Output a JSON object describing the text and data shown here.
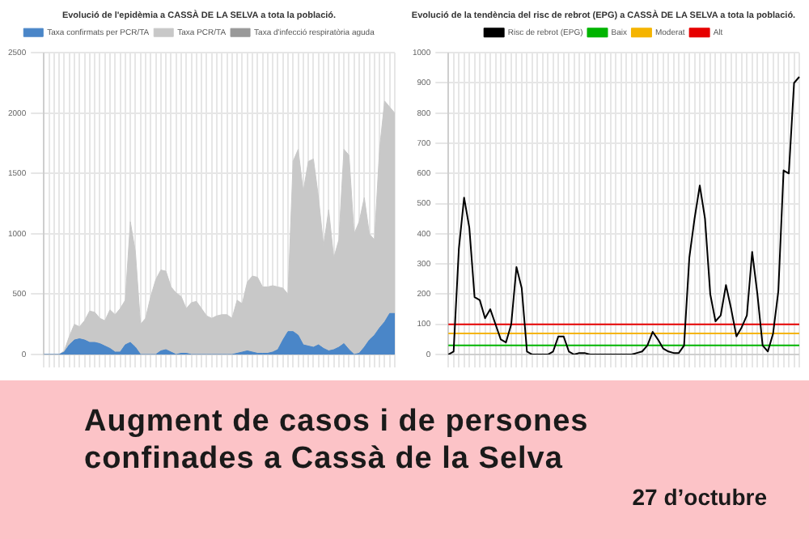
{
  "chart_data": [
    {
      "type": "area",
      "title": "Evolució de l'epidèmia a CASSÀ DE LA SELVA a tota la població.",
      "categories": [
        null,
        null,
        null,
        null,
        null,
        null,
        null,
        null,
        null,
        null,
        null,
        null,
        null,
        null,
        null,
        null,
        null,
        null,
        null,
        null,
        null,
        null,
        null,
        null,
        null,
        null,
        null,
        null,
        null,
        null,
        null,
        null,
        null,
        null,
        null,
        null,
        null,
        null,
        null,
        null,
        null,
        null,
        null,
        null,
        null,
        null,
        null,
        null,
        null,
        null,
        null,
        null,
        null,
        null,
        null,
        null,
        null,
        null,
        null,
        null,
        null,
        null,
        null,
        null,
        null,
        null,
        null,
        null,
        null,
        null
      ],
      "series": [
        {
          "name": "Taxa confirmats per PCR/TA",
          "color": "#4a86c8",
          "values": [
            0,
            0,
            0,
            0,
            20,
            80,
            120,
            130,
            120,
            100,
            100,
            90,
            70,
            50,
            20,
            20,
            80,
            100,
            60,
            0,
            0,
            0,
            0,
            30,
            40,
            20,
            0,
            10,
            10,
            0,
            0,
            0,
            0,
            0,
            0,
            0,
            0,
            0,
            10,
            20,
            30,
            20,
            10,
            10,
            10,
            20,
            40,
            120,
            190,
            190,
            160,
            80,
            70,
            60,
            80,
            50,
            30,
            40,
            60,
            90,
            40,
            0,
            10,
            60,
            120,
            160,
            220,
            270,
            340,
            340
          ]
        },
        {
          "name": "Taxa PCR/TA",
          "color": "#c8c8c8",
          "values": [
            0,
            0,
            0,
            0,
            30,
            150,
            250,
            230,
            280,
            360,
            350,
            300,
            280,
            370,
            330,
            380,
            450,
            1100,
            850,
            250,
            300,
            480,
            620,
            700,
            690,
            560,
            510,
            480,
            380,
            430,
            440,
            380,
            320,
            300,
            320,
            330,
            330,
            300,
            450,
            420,
            600,
            650,
            640,
            560,
            560,
            570,
            560,
            550,
            500,
            1600,
            1700,
            1350,
            1600,
            1620,
            1300,
            900,
            1200,
            800,
            950,
            1700,
            1650,
            1000,
            1100,
            1300,
            1000,
            950,
            1700,
            2100,
            2050,
            2000
          ]
        },
        {
          "name": "Taxa d'infecció respiratòria aguda",
          "color": "#999999",
          "values": [
            null,
            null,
            null,
            null,
            null,
            null,
            null,
            null,
            null,
            null,
            null,
            null,
            null,
            null,
            null,
            null,
            null,
            null,
            null,
            null,
            null,
            null,
            null,
            null,
            null,
            null,
            null,
            null,
            null,
            null,
            null,
            null,
            null,
            null,
            null,
            null,
            null,
            null,
            null,
            null,
            null,
            null,
            null,
            null,
            null,
            null,
            null,
            null,
            null,
            null,
            null,
            null,
            null,
            null,
            null,
            null,
            null,
            null,
            null,
            null,
            null,
            null,
            null,
            null,
            null,
            null,
            null,
            null,
            null,
            null
          ]
        }
      ],
      "ylim": [
        0,
        2500
      ],
      "yticks": [
        0,
        500,
        1000,
        1500,
        2000,
        2500
      ],
      "grid": true,
      "legend": "top",
      "tick_labels": "y"
    },
    {
      "type": "line",
      "title": "Evolució de la tendència del risc de rebrot (EPG) a CASSÀ DE LA SELVA a tota la població.",
      "categories": [
        null,
        null,
        null,
        null,
        null,
        null,
        null,
        null,
        null,
        null,
        null,
        null,
        null,
        null,
        null,
        null,
        null,
        null,
        null,
        null,
        null,
        null,
        null,
        null,
        null,
        null,
        null,
        null,
        null,
        null,
        null,
        null,
        null,
        null,
        null,
        null,
        null,
        null,
        null,
        null,
        null,
        null,
        null,
        null,
        null,
        null,
        null,
        null,
        null,
        null,
        null,
        null,
        null,
        null,
        null,
        null,
        null,
        null,
        null,
        null,
        null,
        null,
        null,
        null,
        null,
        null,
        null,
        null
      ],
      "series": [
        {
          "name": "Risc de rebrot (EPG)",
          "color": "#000000",
          "values": [
            0,
            10,
            350,
            520,
            420,
            190,
            180,
            120,
            150,
            100,
            50,
            40,
            100,
            290,
            220,
            10,
            0,
            0,
            0,
            0,
            10,
            60,
            60,
            10,
            0,
            5,
            5,
            0,
            0,
            0,
            0,
            0,
            0,
            0,
            0,
            0,
            5,
            10,
            30,
            75,
            50,
            20,
            10,
            5,
            5,
            30,
            320,
            450,
            560,
            450,
            200,
            110,
            130,
            230,
            150,
            60,
            90,
            130,
            340,
            200,
            30,
            10,
            70,
            210,
            610,
            600,
            900,
            920
          ]
        },
        {
          "name": "Baix",
          "color": "#00b400",
          "values": [
            30,
            30,
            30,
            30,
            30,
            30,
            30,
            30,
            30,
            30,
            30,
            30,
            30,
            30,
            30,
            30,
            30,
            30,
            30,
            30,
            30,
            30,
            30,
            30,
            30,
            30,
            30,
            30,
            30,
            30,
            30,
            30,
            30,
            30,
            30,
            30,
            30,
            30,
            30,
            30,
            30,
            30,
            30,
            30,
            30,
            30,
            30,
            30,
            30,
            30,
            30,
            30,
            30,
            30,
            30,
            30,
            30,
            30,
            30,
            30,
            30,
            30,
            30,
            30,
            30,
            30,
            30,
            30
          ]
        },
        {
          "name": "Moderat",
          "color": "#f5b400",
          "values": [
            70,
            70,
            70,
            70,
            70,
            70,
            70,
            70,
            70,
            70,
            70,
            70,
            70,
            70,
            70,
            70,
            70,
            70,
            70,
            70,
            70,
            70,
            70,
            70,
            70,
            70,
            70,
            70,
            70,
            70,
            70,
            70,
            70,
            70,
            70,
            70,
            70,
            70,
            70,
            70,
            70,
            70,
            70,
            70,
            70,
            70,
            70,
            70,
            70,
            70,
            70,
            70,
            70,
            70,
            70,
            70,
            70,
            70,
            70,
            70,
            70,
            70,
            70,
            70,
            70,
            70,
            70,
            70
          ]
        },
        {
          "name": "Alt",
          "color": "#e60000",
          "values": [
            100,
            100,
            100,
            100,
            100,
            100,
            100,
            100,
            100,
            100,
            100,
            100,
            100,
            100,
            100,
            100,
            100,
            100,
            100,
            100,
            100,
            100,
            100,
            100,
            100,
            100,
            100,
            100,
            100,
            100,
            100,
            100,
            100,
            100,
            100,
            100,
            100,
            100,
            100,
            100,
            100,
            100,
            100,
            100,
            100,
            100,
            100,
            100,
            100,
            100,
            100,
            100,
            100,
            100,
            100,
            100,
            100,
            100,
            100,
            100,
            100,
            100,
            100,
            100,
            100,
            100,
            100,
            100
          ]
        }
      ],
      "ylim": [
        0,
        1000
      ],
      "yticks": [
        0,
        100,
        200,
        300,
        400,
        500,
        600,
        700,
        800,
        900,
        1000
      ],
      "grid": true,
      "legend": "top",
      "marker": "none",
      "tick_labels": "y"
    },
    {
      "type": "other",
      "title": "Augment de casos i de persones confinades a Cassà de la Selva",
      "annotations": [
        "27 d’octubre"
      ]
    }
  ]
}
